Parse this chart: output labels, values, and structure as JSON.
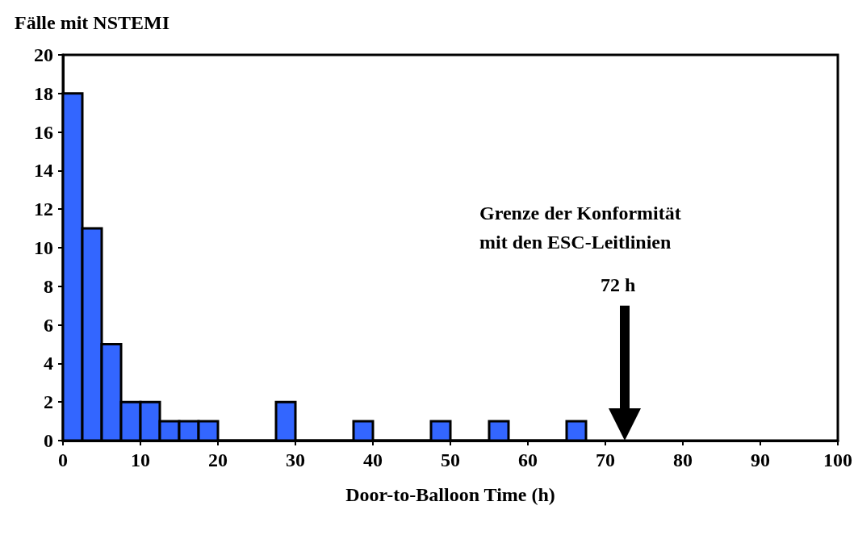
{
  "chart_data": {
    "type": "histogram",
    "ylabel": "Fälle mit NSTEMI",
    "xlabel": "Door-to-Balloon Time (h)",
    "bins": [
      0,
      2.5,
      5,
      7.5,
      10,
      12.5,
      15,
      17.5,
      20,
      22.5,
      25,
      27.5,
      30,
      32.5,
      35,
      37.5,
      40,
      42.5,
      45,
      47.5,
      50,
      52.5,
      55,
      57.5,
      60,
      62.5,
      65,
      67.5
    ],
    "values": [
      18,
      11,
      5,
      2,
      2,
      1,
      1,
      1,
      0,
      0,
      0,
      2,
      0,
      0,
      0,
      1,
      0,
      0,
      0,
      1,
      0,
      0,
      1,
      0,
      0,
      0,
      1
    ],
    "color": "#3366ff",
    "xlim": [
      0,
      100
    ],
    "xticks": [
      0,
      10,
      20,
      30,
      40,
      50,
      60,
      70,
      80,
      90,
      100
    ],
    "ylim": [
      0,
      20
    ],
    "yticks": [
      0,
      2,
      4,
      6,
      8,
      10,
      12,
      14,
      16,
      18,
      20
    ],
    "grid": false,
    "ref_lines": [
      {
        "axis": "x",
        "value": 72.5,
        "label": "72 h"
      }
    ],
    "annotations": [
      "Grenze der Konformität\nmit den ESC-Leitlinien"
    ]
  }
}
